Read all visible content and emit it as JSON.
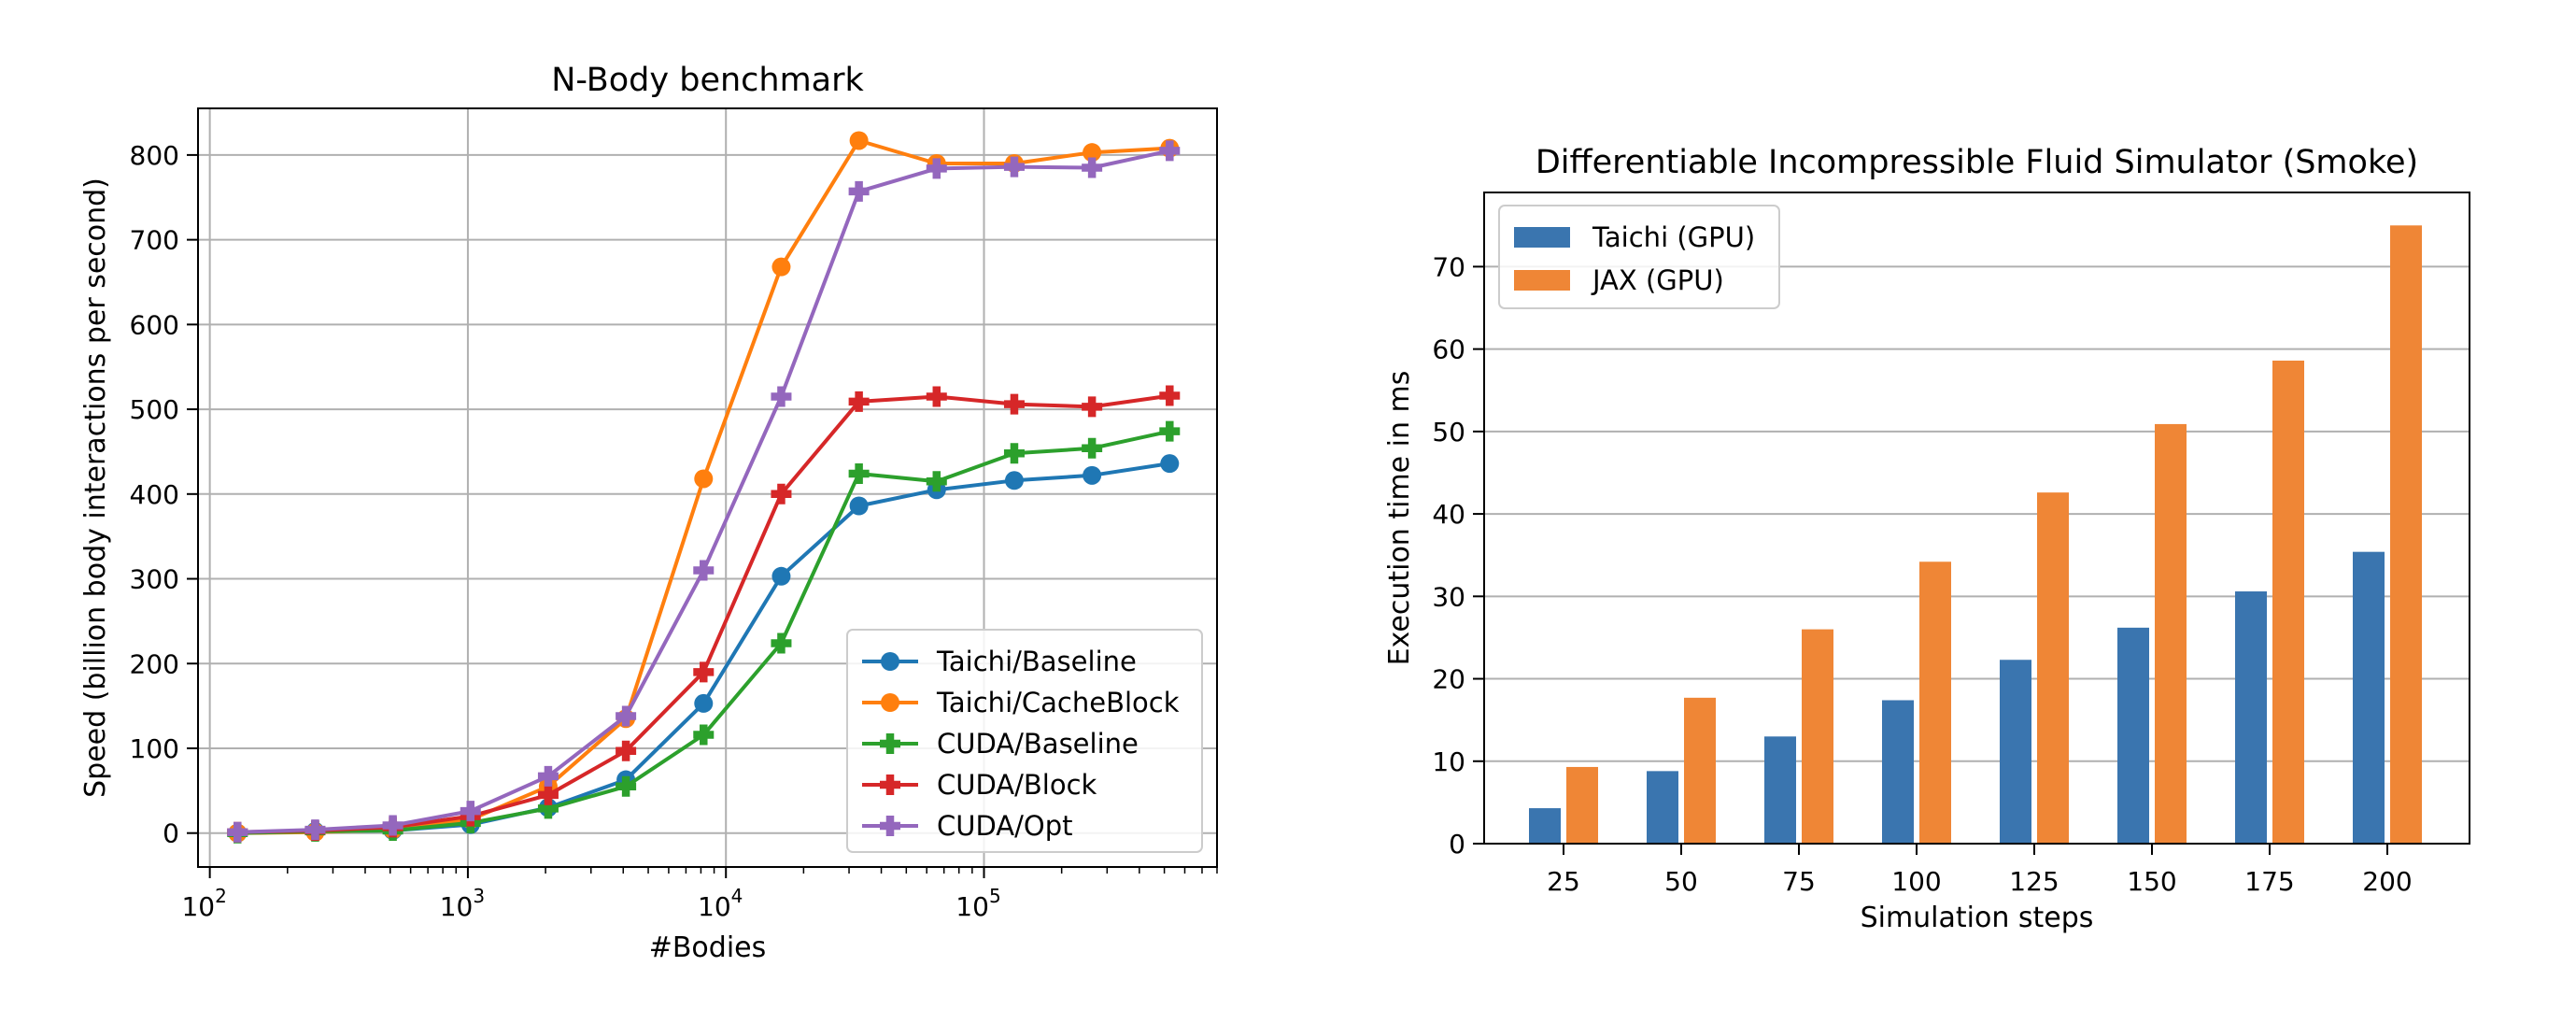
{
  "chart_data": [
    {
      "type": "line",
      "title": "N-Body benchmark",
      "xlabel": "#Bodies",
      "ylabel": "Speed (billion body interactions per second)",
      "xscale": "log",
      "xlim": [
        90,
        800000
      ],
      "ylim": [
        -40,
        855
      ],
      "grid": true,
      "legend_position": "lower-right",
      "x_tick_labels": [
        {
          "base": "10",
          "exp": "2",
          "value": 100
        },
        {
          "base": "10",
          "exp": "3",
          "value": 1000
        },
        {
          "base": "10",
          "exp": "4",
          "value": 10000
        },
        {
          "base": "10",
          "exp": "5",
          "value": 100000
        }
      ],
      "y_ticks": [
        "0",
        "100",
        "200",
        "300",
        "400",
        "500",
        "600",
        "700",
        "800"
      ],
      "x": [
        128,
        256,
        512,
        1024,
        2048,
        4096,
        8192,
        16384,
        32768,
        65536,
        131072,
        262144,
        524288
      ],
      "series": [
        {
          "name": "Taichi/Baseline",
          "color": "#1f77b4",
          "marker": "circle",
          "values": [
            0,
            2,
            3,
            10,
            30,
            63,
            153,
            303,
            386,
            405,
            416,
            422,
            436
          ]
        },
        {
          "name": "Taichi/CacheBlock",
          "color": "#ff7f0e",
          "marker": "circle",
          "values": [
            0,
            1,
            4,
            16,
            55,
            135,
            418,
            668,
            817,
            790,
            790,
            803,
            808
          ]
        },
        {
          "name": "CUDA/Baseline",
          "color": "#2ca02c",
          "marker": "plus",
          "values": [
            0,
            2,
            3,
            12,
            29,
            55,
            116,
            224,
            424,
            415,
            448,
            454,
            474
          ]
        },
        {
          "name": "CUDA/Block",
          "color": "#d62728",
          "marker": "plus",
          "values": [
            1,
            3,
            7,
            20,
            45,
            97,
            190,
            400,
            509,
            515,
            506,
            503,
            516
          ]
        },
        {
          "name": "CUDA/Opt",
          "color": "#9467bd",
          "marker": "plus",
          "values": [
            1,
            4,
            9,
            26,
            67,
            138,
            310,
            515,
            757,
            784,
            786,
            785,
            805
          ]
        }
      ]
    },
    {
      "type": "bar",
      "title": "Differentiable Incompressible Fluid Simulator (Smoke)",
      "xlabel": "Simulation steps",
      "ylabel": "Execution time in ms",
      "ylim": [
        0,
        79
      ],
      "grid": "y",
      "legend_position": "upper-left",
      "y_ticks": [
        "0",
        "10",
        "20",
        "30",
        "40",
        "50",
        "60",
        "70"
      ],
      "categories": [
        "25",
        "50",
        "75",
        "100",
        "125",
        "150",
        "175",
        "200"
      ],
      "series": [
        {
          "name": "Taichi (GPU)",
          "color": "#3a75af",
          "values": [
            4.3,
            8.8,
            13.0,
            17.4,
            22.3,
            26.2,
            30.6,
            35.4
          ]
        },
        {
          "name": "JAX (GPU)",
          "color": "#ef8636",
          "values": [
            9.3,
            17.7,
            26.0,
            34.2,
            42.6,
            50.9,
            58.6,
            75.0
          ]
        }
      ]
    }
  ]
}
